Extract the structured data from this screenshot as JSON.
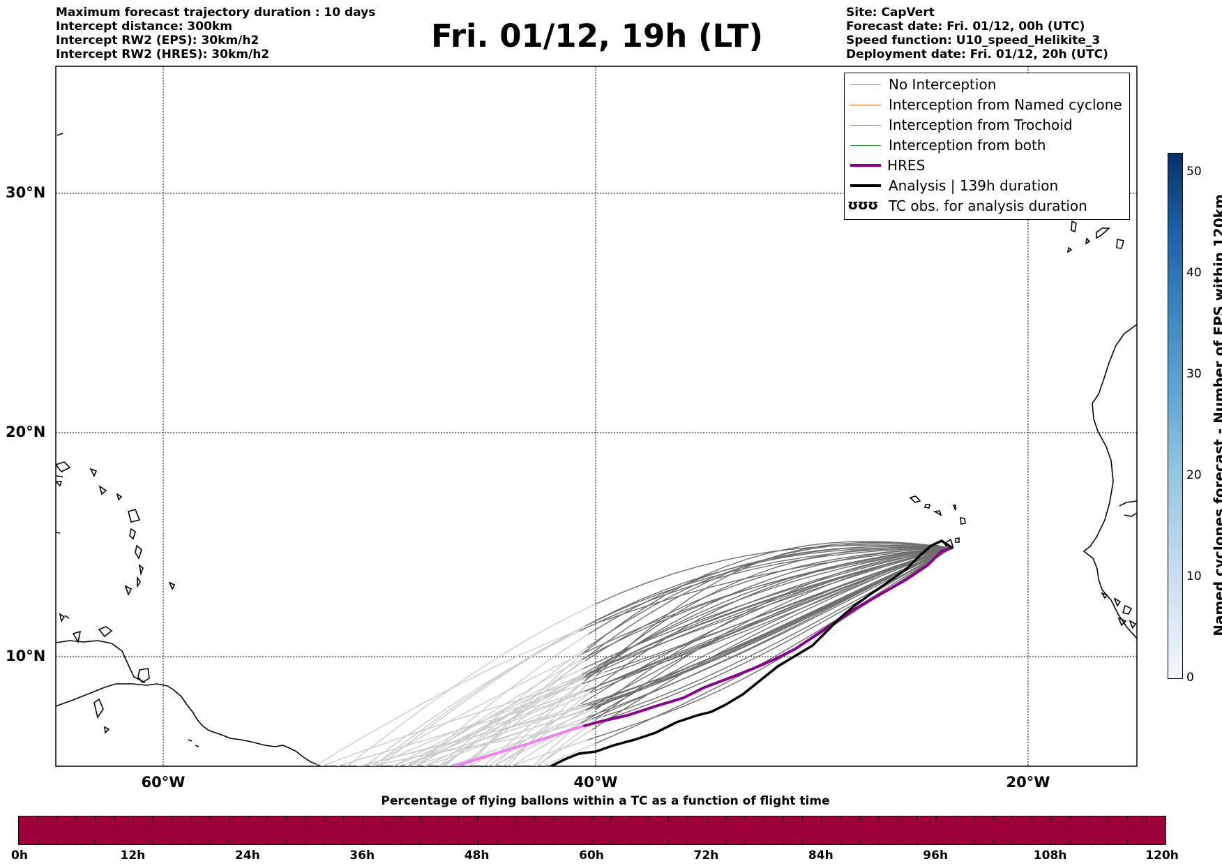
{
  "header_left": [
    "Maximum forecast trajectory duration : 10 days",
    "Intercept distance: 300km",
    "Intercept RW2 (EPS):  30km/h2",
    "Intercept RW2 (HRES): 30km/h2"
  ],
  "title": "Fri. 01/12, 19h (LT)",
  "header_right": [
    "Site: CapVert",
    "Forecast date: Fri. 01/12, 00h (UTC)",
    "Speed function: U10_speed_Helikite_3",
    "Deployment date: Fri. 01/12, 20h (UTC)"
  ],
  "axes": {
    "lat_ticks": [
      "30°N",
      "20°N",
      "10°N"
    ],
    "lon_ticks": [
      "60°W",
      "40°W",
      "20°W"
    ]
  },
  "legend": [
    {
      "label": "No Interception",
      "color": "#808080",
      "style": "thin"
    },
    {
      "label": "Interception from Named cyclone",
      "color": "#f4733c",
      "style": "thin"
    },
    {
      "label": "Interception from Trochoid",
      "color": "#8f8a2a",
      "style": "thin"
    },
    {
      "label": "Interception from both",
      "color": "#2e9e2e",
      "style": "thin"
    },
    {
      "label": "HRES",
      "color": "#8b008b",
      "style": "thick"
    },
    {
      "label": "Analysis | 139h duration",
      "color": "#000000",
      "style": "thick"
    },
    {
      "label": "TC obs. for analysis duration",
      "color": "#000000",
      "style": "glyph",
      "glyph": "ʊʊʊ"
    }
  ],
  "right_colorbar": {
    "label": "Named cyclones forecast - Number of EPS within 120km",
    "ticks": [
      "50",
      "40",
      "30",
      "20",
      "10",
      "0"
    ],
    "range": [
      0,
      52
    ]
  },
  "bottom_colorbar": {
    "caption": "Percentage of flying ballons within a TC as a function of flight time",
    "ticks": [
      "0h",
      "12h",
      "24h",
      "36h",
      "48h",
      "60h",
      "72h",
      "84h",
      "96h",
      "108h",
      "120h"
    ],
    "color": "#9c0038"
  },
  "map": {
    "launch_site": "CapVert",
    "colors": {
      "ensemble_far": "#cccccc",
      "ensemble_near": "#6e6e6e",
      "hres": "#8b008b",
      "hres_far": "#ee82ee",
      "analysis": "#000000"
    }
  }
}
